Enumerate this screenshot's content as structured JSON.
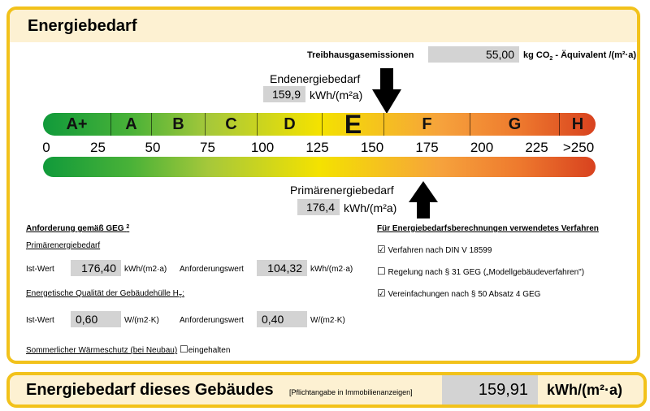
{
  "title": "Energiebedarf",
  "emissions": {
    "label": "Treibhausgasemissionen",
    "value": "55,00",
    "unit_a": "kg CO",
    "unit_sub": "2",
    "unit_b": " - Äquivalent  /(m²·a)"
  },
  "endenergie": {
    "label": "Endenergiebedarf",
    "value": "159,9",
    "unit": "kWh/(m²a)"
  },
  "primaerenergie": {
    "label": "Primärenergiebedarf",
    "value": "176,4",
    "unit": "kWh/(m²a)"
  },
  "scale": {
    "classes": [
      "A+",
      "A",
      "B",
      "C",
      "D",
      "E",
      "F",
      "G",
      "H"
    ],
    "current_class": "E",
    "ticks": [
      "0",
      "25",
      "50",
      "75",
      "100",
      "125",
      "150",
      "175",
      "200",
      "225",
      ">250"
    ],
    "end_energy_value": 159.9,
    "primary_energy_value": 176.4,
    "max": 250
  },
  "anforderung": {
    "heading": "Anforderung gemäß GEG",
    "heading_sup": "2",
    "primaer_heading": "Primärenergiebedarf",
    "ist_label": "Ist-Wert",
    "ist_value": "176,40",
    "ist_unit": "kWh/(m2·a)",
    "anf_label": "Anforderungswert",
    "anf_value": "104,32",
    "anf_unit": "kWh/(m2·a)",
    "huelle_heading": "Energetische Qualität der Gebäudehülle H",
    "huelle_sub": "T",
    "huelle_colon": ":",
    "ist2_label": "Ist-Wert",
    "ist2_value": "0,60",
    "ist2_unit": "W/(m2·K)",
    "anf2_label": "Anforderungswert",
    "anf2_value": "0,40",
    "anf2_unit": "W/(m2·K)",
    "sommer_label": "Sommerlicher Wärmeschutz (bei Neubau)",
    "sommer_check_label": "eingehalten",
    "sommer_checked": false
  },
  "verfahren": {
    "heading": "Für Energiebedarfsberechnungen verwendetes Verfahren",
    "items": [
      {
        "label": "Verfahren nach DIN V 18599",
        "checked": true
      },
      {
        "label": "Regelung nach § 31 GEG („Modellgebäudeverfahren\")",
        "checked": false
      },
      {
        "label": "Vereinfachungen nach § 50 Absatz 4 GEG",
        "checked": true
      }
    ]
  },
  "footer": {
    "title": "Energiebedarf dieses Gebäudes",
    "note": "[Pflichtangabe in Immobilienanzeigen]",
    "value": "159,91",
    "unit": "kWh/(m²·a)"
  },
  "colors": {
    "accent_border": "#f2c21b",
    "header_bg": "#fdf1d2",
    "value_box": "#d3d3d3",
    "scale_start": "#109a3a",
    "scale_mid": "#f4e200",
    "scale_end": "#d8421f"
  },
  "icons": {
    "down_arrow": "arrow-down-icon",
    "up_arrow": "arrow-up-icon",
    "checkbox_checked": "checkbox-checked-icon",
    "checkbox_empty": "checkbox-empty-icon"
  }
}
